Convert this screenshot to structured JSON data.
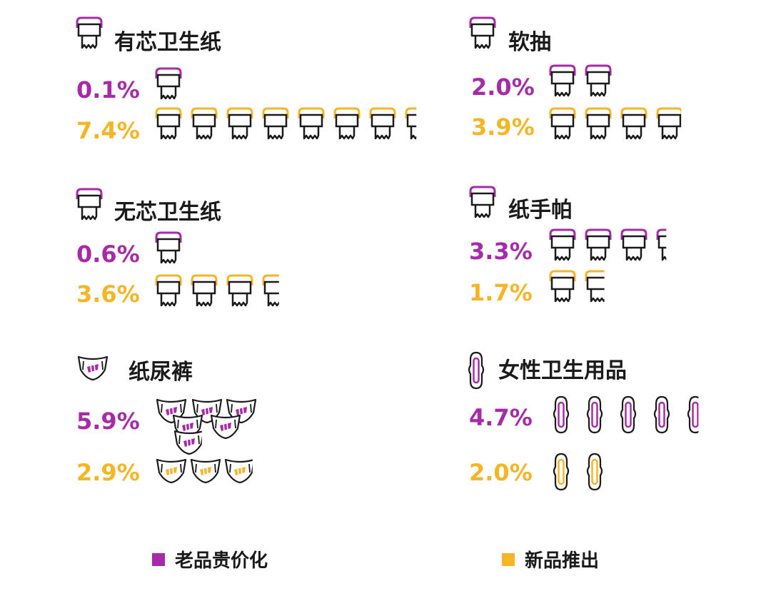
{
  "chart_data": {
    "type": "pictogram",
    "unit": "%",
    "legend": {
      "position": "bottom",
      "items": [
        {
          "label": "老品贵价化",
          "color": "#a72ba8"
        },
        {
          "label": "新品推出",
          "color": "#f5b525"
        }
      ]
    },
    "categories": [
      {
        "name": "有芯卫生纸",
        "icon": "toilet-roll-icon",
        "series": [
          {
            "label": "0.1%",
            "value": 0.1
          },
          {
            "label": "7.4%",
            "value": 7.4
          }
        ]
      },
      {
        "name": "软抽",
        "icon": "toilet-roll-icon",
        "series": [
          {
            "label": "2.0%",
            "value": 2.0
          },
          {
            "label": "3.9%",
            "value": 3.9
          }
        ]
      },
      {
        "name": "无芯卫生纸",
        "icon": "toilet-roll-icon",
        "series": [
          {
            "label": "0.6%",
            "value": 0.6
          },
          {
            "label": "3.6%",
            "value": 3.6
          }
        ]
      },
      {
        "name": "纸手帕",
        "icon": "toilet-roll-icon",
        "series": [
          {
            "label": "3.3%",
            "value": 3.3
          },
          {
            "label": "1.7%",
            "value": 1.7
          }
        ]
      },
      {
        "name": "纸尿裤",
        "icon": "diaper-icon",
        "series": [
          {
            "label": "5.9%",
            "value": 5.9
          },
          {
            "label": "2.9%",
            "value": 2.9
          }
        ]
      },
      {
        "name": "女性卫生用品",
        "icon": "sanitary-pad-icon",
        "series": [
          {
            "label": "4.7%",
            "value": 4.7
          },
          {
            "label": "2.0%",
            "value": 2.0
          }
        ]
      }
    ]
  },
  "colors": {
    "purple": "#a72ba8",
    "yellow": "#f5b525",
    "ink": "#1a1a1a"
  }
}
